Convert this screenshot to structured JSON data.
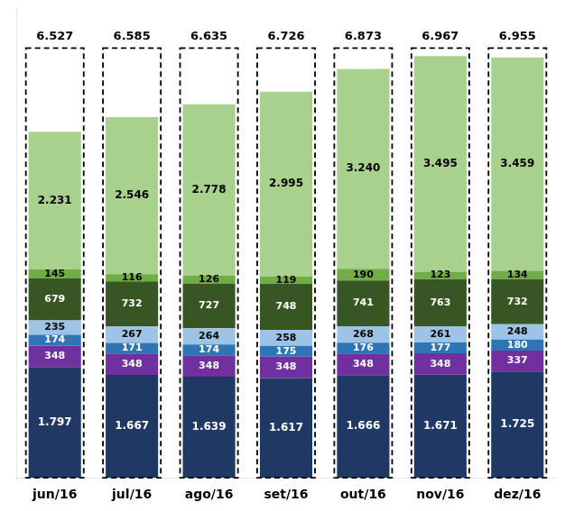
{
  "chart_data": {
    "type": "bar",
    "stacked": true,
    "categories": [
      "jun/16",
      "jul/16",
      "ago/16",
      "set/16",
      "out/16",
      "nov/16",
      "dez/16"
    ],
    "series": [
      {
        "color": "#1f3864",
        "values": [
          1.797,
          1.667,
          1.639,
          1.617,
          1.666,
          1.671,
          1.725
        ],
        "value_labels": [
          "1.797",
          "1.667",
          "1.639",
          "1.617",
          "1.666",
          "1.671",
          "1.725"
        ]
      },
      {
        "color": "#7030a0",
        "values": [
          0.348,
          0.348,
          0.348,
          0.348,
          0.348,
          0.348,
          0.337
        ],
        "value_labels": [
          "348",
          "348",
          "348",
          "348",
          "348",
          "348",
          "337"
        ]
      },
      {
        "color": "#2e75b6",
        "values": [
          0.174,
          0.171,
          0.174,
          0.175,
          0.176,
          0.177,
          0.18
        ],
        "value_labels": [
          "174",
          "171",
          "174",
          "175",
          "176",
          "177",
          "180"
        ]
      },
      {
        "color": "#9dc3e6",
        "values": [
          0.235,
          0.267,
          0.264,
          0.258,
          0.268,
          0.261,
          0.248
        ],
        "value_labels": [
          "235",
          "267",
          "264",
          "258",
          "268",
          "261",
          "248"
        ]
      },
      {
        "color": "#375623",
        "values": [
          0.679,
          0.732,
          0.727,
          0.748,
          0.741,
          0.763,
          0.732
        ],
        "value_labels": [
          "679",
          "732",
          "727",
          "748",
          "741",
          "763",
          "732"
        ]
      },
      {
        "color": "#70ad47",
        "values": [
          0.145,
          0.116,
          0.126,
          0.119,
          0.19,
          0.123,
          0.134
        ],
        "value_labels": [
          "145",
          "116",
          "126",
          "119",
          "190",
          "123",
          "134"
        ]
      },
      {
        "color": "#a9d18e",
        "values": [
          2.231,
          2.546,
          2.778,
          2.995,
          3.24,
          3.495,
          3.459
        ],
        "value_labels": [
          "2.231",
          "2.546",
          "2.778",
          "2.995",
          "3.240",
          "3.495",
          "3.459"
        ]
      }
    ],
    "totals": [
      6.527,
      6.585,
      6.635,
      6.726,
      6.873,
      6.967,
      6.955
    ],
    "total_labels": [
      "6.527",
      "6.585",
      "6.635",
      "6.726",
      "6.873",
      "6.967",
      "6.955"
    ],
    "box_top": 6.967,
    "ylim": [
      0,
      7.6
    ],
    "grid": false,
    "data_labels": true,
    "tick_labels": "x"
  }
}
